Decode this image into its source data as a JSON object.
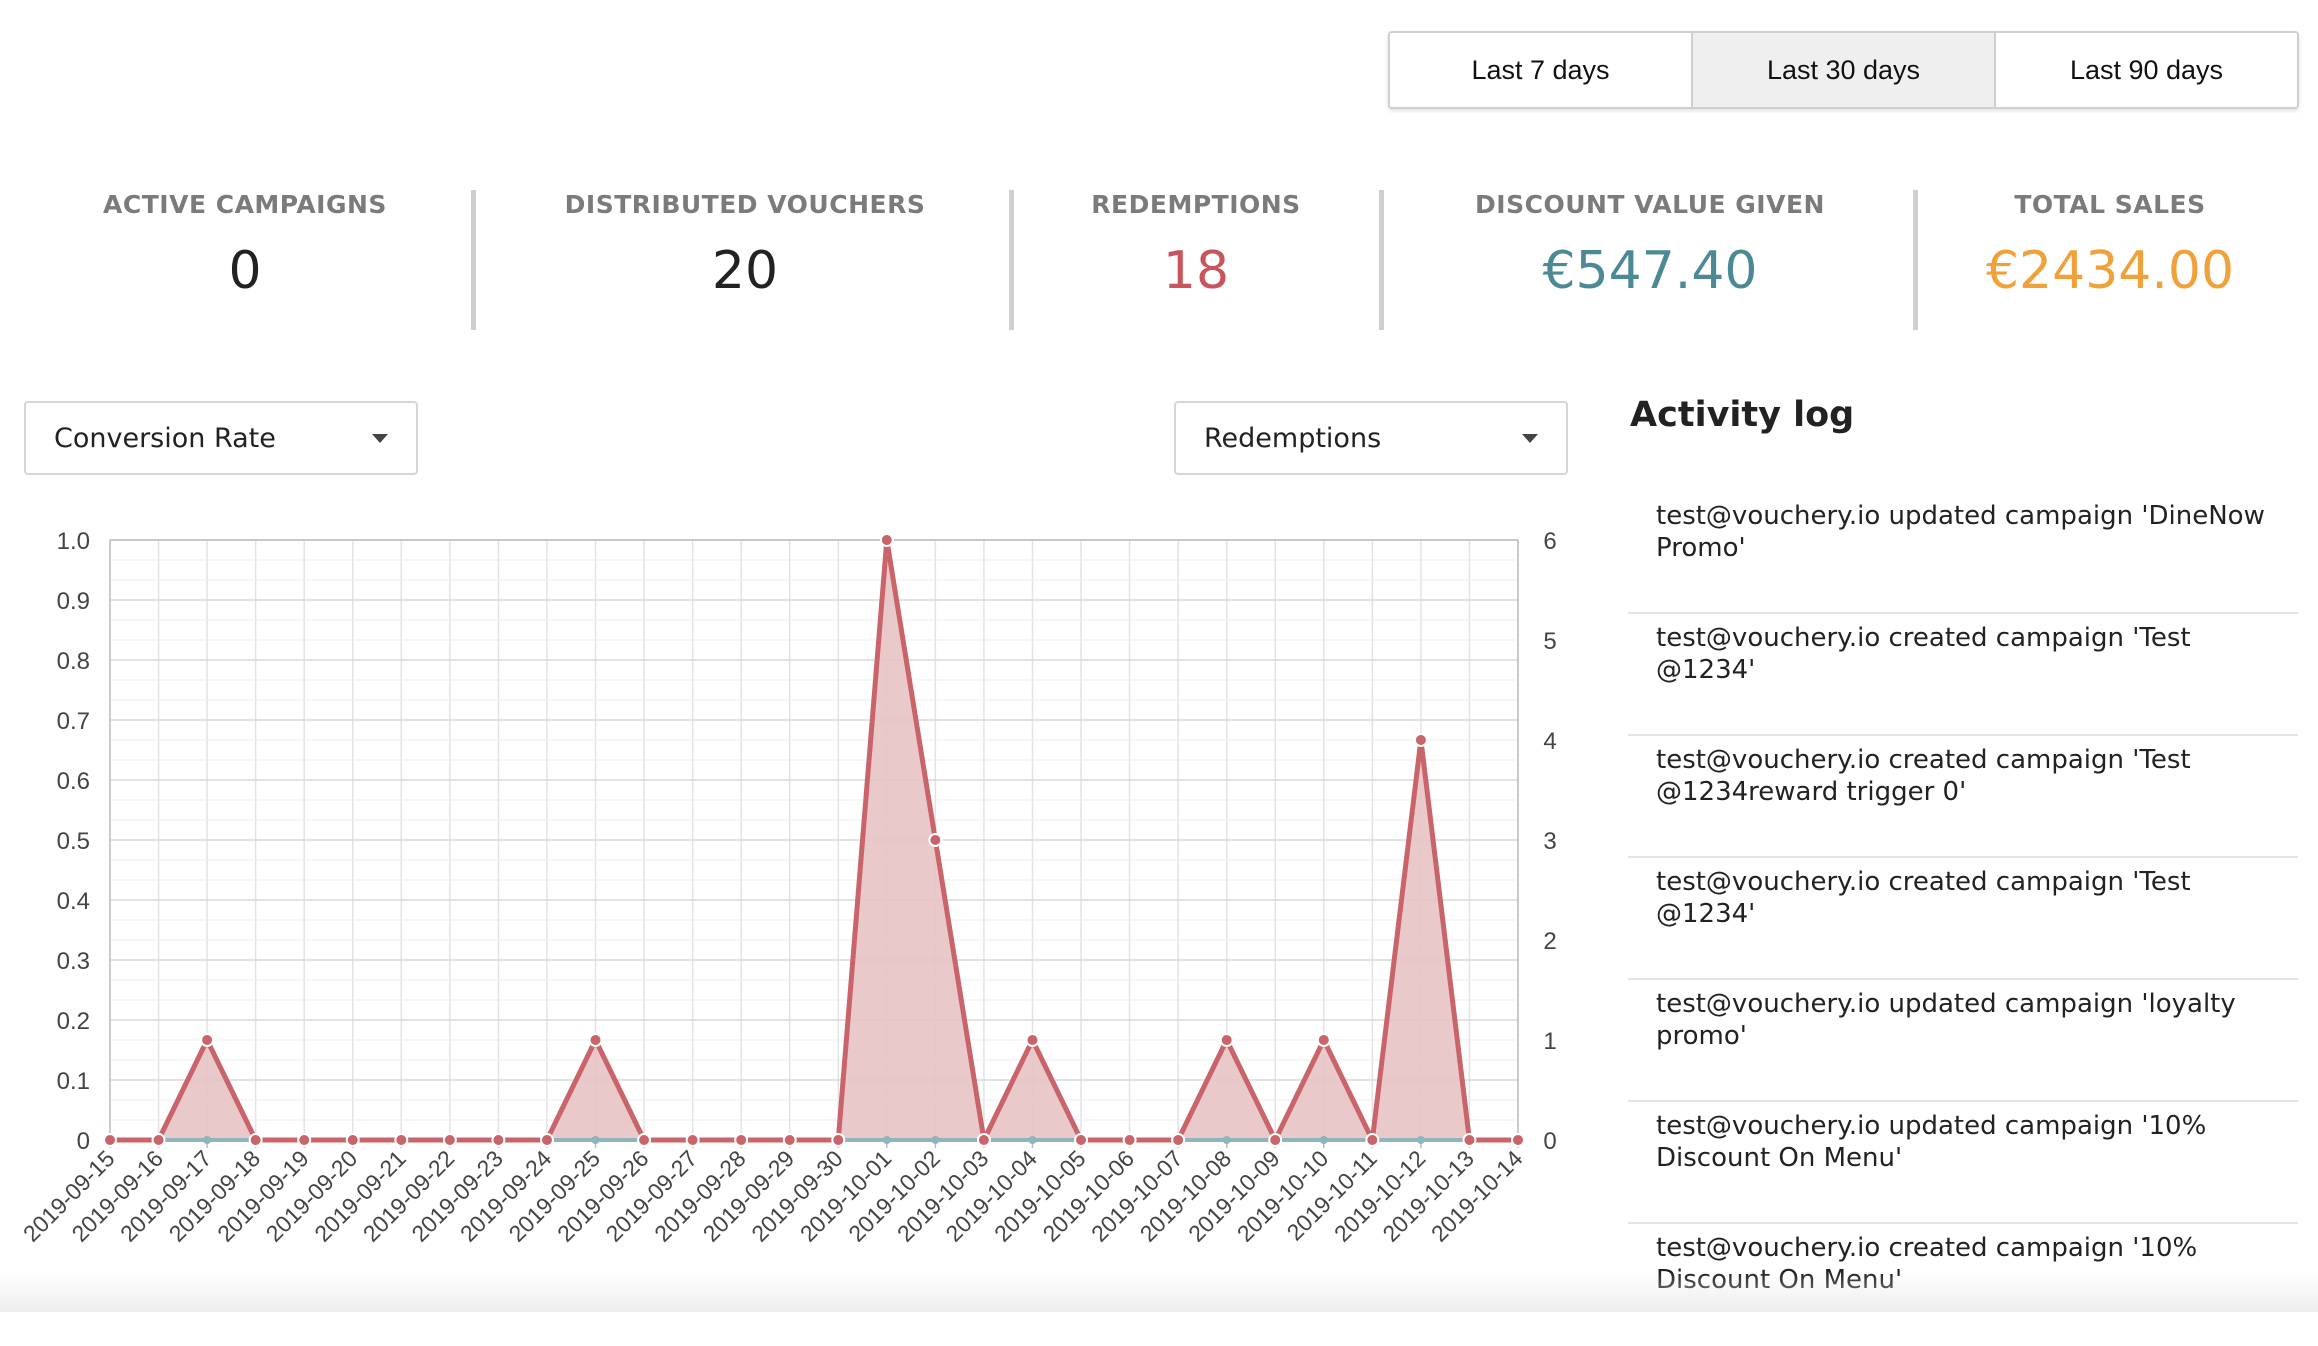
{
  "range_buttons": [
    "Last 7 days",
    "Last 30 days",
    "Last 90 days"
  ],
  "active_range": "Last 30 days",
  "stats": [
    {
      "label": "ACTIVE CAMPAIGNS",
      "value": "0",
      "color": "#222222"
    },
    {
      "label": "DISTRIBUTED VOUCHERS",
      "value": "20",
      "color": "#222222"
    },
    {
      "label": "REDEMPTIONS",
      "value": "18",
      "color": "#c9545c"
    },
    {
      "label": "DISCOUNT VALUE GIVEN",
      "value": "€547.40",
      "color": "#4b8a94"
    },
    {
      "label": "TOTAL SALES",
      "value": "€2434.00",
      "color": "#f0a13a"
    }
  ],
  "selects": {
    "left": {
      "value": "Conversion Rate",
      "icon": "caret-down-icon"
    },
    "right": {
      "value": "Redemptions",
      "icon": "caret-down-icon"
    }
  },
  "activity": {
    "title": "Activity log",
    "items": [
      "test@vouchery.io updated campaign 'DineNow Promo'",
      "test@vouchery.io created campaign 'Test @1234'",
      "test@vouchery.io created campaign 'Test @1234reward trigger 0'",
      "test@vouchery.io created campaign 'Test @1234'",
      "test@vouchery.io updated campaign 'loyalty promo'",
      "test@vouchery.io updated campaign '10% Discount On Menu'",
      "test@vouchery.io created campaign '10% Discount On Menu'"
    ]
  },
  "chart_data": {
    "type": "area",
    "x": [
      "2019-09-15",
      "2019-09-16",
      "2019-09-17",
      "2019-09-18",
      "2019-09-19",
      "2019-09-20",
      "2019-09-21",
      "2019-09-22",
      "2019-09-23",
      "2019-09-24",
      "2019-09-25",
      "2019-09-26",
      "2019-09-27",
      "2019-09-28",
      "2019-09-29",
      "2019-09-30",
      "2019-10-01",
      "2019-10-02",
      "2019-10-03",
      "2019-10-04",
      "2019-10-05",
      "2019-10-06",
      "2019-10-07",
      "2019-10-08",
      "2019-10-09",
      "2019-10-10",
      "2019-10-11",
      "2019-10-12",
      "2019-10-13",
      "2019-10-14"
    ],
    "series": [
      {
        "axis": "right",
        "color": "#c9646a",
        "fill": "#e8c3c5",
        "values": [
          0,
          0,
          1,
          0,
          0,
          0,
          0,
          0,
          0,
          0,
          1,
          0,
          0,
          0,
          0,
          0,
          6,
          3,
          0,
          1,
          0,
          0,
          0,
          1,
          0,
          1,
          0,
          4,
          0,
          0
        ]
      },
      {
        "axis": "left",
        "color": "#8fb4bb",
        "values": [
          0,
          0,
          0,
          0,
          0,
          0,
          0,
          0,
          0,
          0,
          0,
          0,
          0,
          0,
          0,
          0,
          0,
          0,
          0,
          0,
          0,
          0,
          0,
          0,
          0,
          0,
          0,
          0,
          0,
          0
        ]
      }
    ],
    "left_axis": {
      "min": 0,
      "max": 1.0,
      "ticks": [
        "0",
        "0.1",
        "0.2",
        "0.3",
        "0.4",
        "0.5",
        "0.6",
        "0.7",
        "0.8",
        "0.9",
        "1.0"
      ]
    },
    "right_axis": {
      "min": 0,
      "max": 6,
      "ticks": [
        "0",
        "1",
        "2",
        "3",
        "4",
        "5",
        "6"
      ]
    },
    "grid": true
  }
}
